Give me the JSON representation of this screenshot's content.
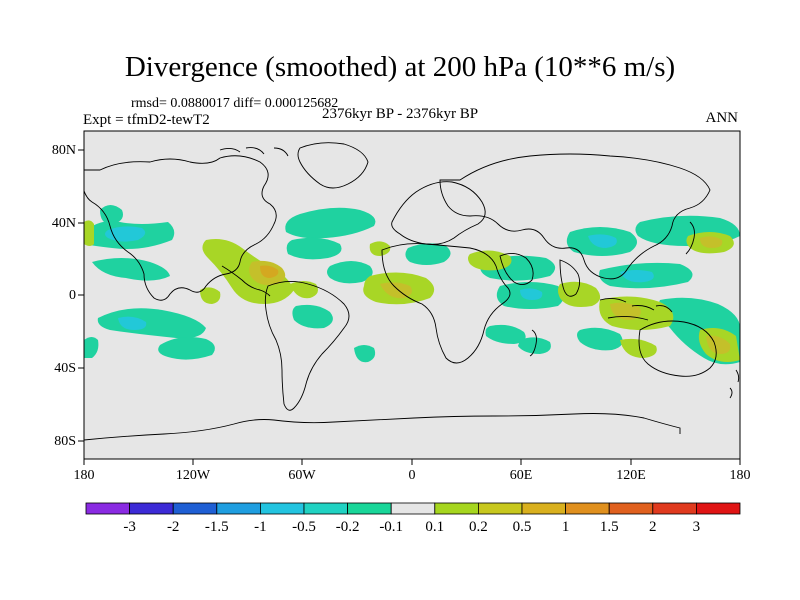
{
  "title": "Divergence (smoothed) at 200 hPa (10**6 m/s)",
  "stats": "rmsd= 0.0880017 diff= 0.000125682",
  "experiment": "Expt = tfmD2-tewT2",
  "period": "2376kyr BP - 2376kyr BP",
  "season": "ANN",
  "y_ticks": [
    "80N",
    "40N",
    "0",
    "40S",
    "80S"
  ],
  "x_ticks": [
    "180",
    "120W",
    "60W",
    "0",
    "60E",
    "120E",
    "180"
  ],
  "colorbar": {
    "labels": [
      "-3",
      "-2",
      "-1.5",
      "-1",
      "-0.5",
      "-0.2",
      "-0.1",
      "0.1",
      "0.2",
      "0.5",
      "1",
      "1.5",
      "2",
      "3"
    ],
    "colors": [
      "#8a2be2",
      "#3c2ad6",
      "#1f5fd4",
      "#1f9ee0",
      "#23c4e0",
      "#20d2c2",
      "#19d699",
      "#e6e6e6",
      "#a6d61f",
      "#c8c81e",
      "#d9b01e",
      "#e0901e",
      "#e0601e",
      "#e03a1e",
      "#e01414"
    ]
  },
  "palette": {
    "neutral": "#e6e6e6",
    "teal": "#1fd2a0",
    "cyan": "#22c8d8",
    "lime": "#a8d626",
    "olive": "#c4c02a",
    "gold": "#d4a820"
  }
}
